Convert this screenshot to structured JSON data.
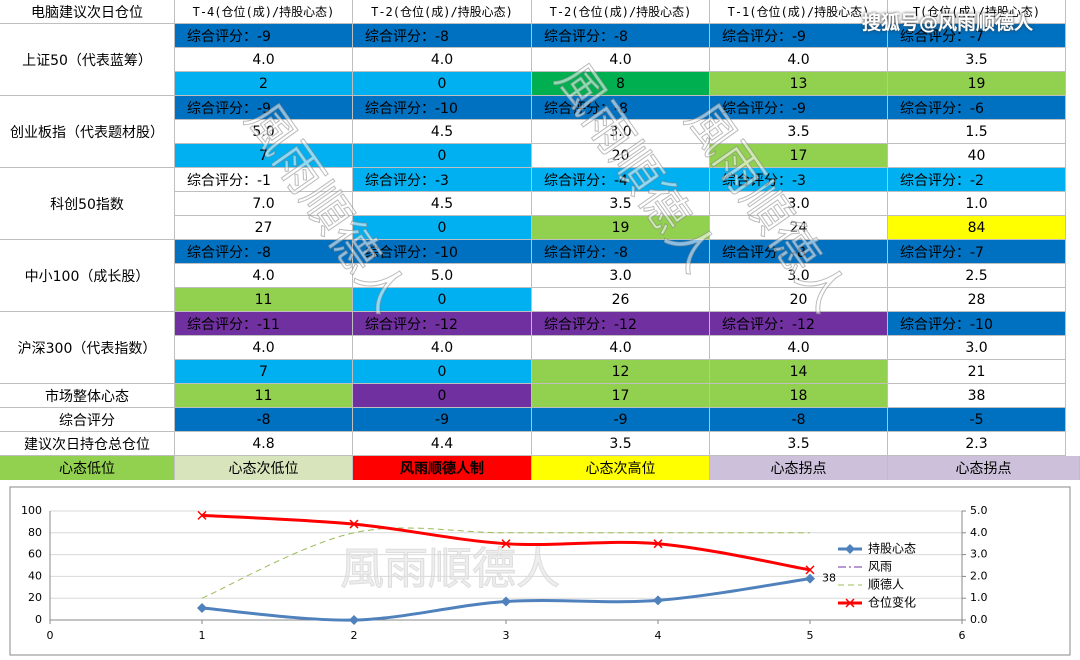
{
  "watermark_top": "搜狐号@风雨顺德人",
  "watermark": "風雨順德人",
  "table": {
    "header": [
      "电脑建议次日仓位",
      "T-4(仓位(成)/持股心态)",
      "T-2(仓位(成)/持股心态)",
      "T-2(仓位(成)/持股心态)",
      "T-1(仓位(成)/持股心态)",
      "T(仓位(成)/持股心态)"
    ],
    "groups": [
      {
        "name": "上证50（代表蓝筹）",
        "rows": [
          [
            {
              "text": "综合评分：-9",
              "fill": "#0070c0"
            },
            {
              "text": "综合评分：-8",
              "fill": "#0070c0"
            },
            {
              "text": "综合评分：-8",
              "fill": "#0070c0"
            },
            {
              "text": "综合评分：-9",
              "fill": "#0070c0"
            },
            {
              "text": "综合评分：-7",
              "fill": "#0070c0"
            }
          ],
          [
            {
              "text": "4.0",
              "fill": "#ffffff"
            },
            {
              "text": "4.0",
              "fill": "#ffffff"
            },
            {
              "text": "4.0",
              "fill": "#ffffff"
            },
            {
              "text": "4.0",
              "fill": "#ffffff"
            },
            {
              "text": "3.5",
              "fill": "#ffffff"
            }
          ],
          [
            {
              "text": "2",
              "fill": "#00b0f0"
            },
            {
              "text": "0",
              "fill": "#00b0f0"
            },
            {
              "text": "8",
              "fill": "#00b050"
            },
            {
              "text": "13",
              "fill": "#92d050"
            },
            {
              "text": "19",
              "fill": "#92d050"
            }
          ]
        ]
      },
      {
        "name": "创业板指（代表题材股）",
        "rows": [
          [
            {
              "text": "综合评分：-9",
              "fill": "#0070c0"
            },
            {
              "text": "综合评分：-10",
              "fill": "#0070c0"
            },
            {
              "text": "综合评分：-8",
              "fill": "#0070c0"
            },
            {
              "text": "综合评分：-9",
              "fill": "#0070c0"
            },
            {
              "text": "综合评分：-6",
              "fill": "#0070c0"
            }
          ],
          [
            {
              "text": "5.0",
              "fill": "#ffffff"
            },
            {
              "text": "4.5",
              "fill": "#ffffff"
            },
            {
              "text": "3.0",
              "fill": "#ffffff"
            },
            {
              "text": "3.5",
              "fill": "#ffffff"
            },
            {
              "text": "1.5",
              "fill": "#ffffff"
            }
          ],
          [
            {
              "text": "7",
              "fill": "#00b0f0"
            },
            {
              "text": "0",
              "fill": "#00b0f0"
            },
            {
              "text": "20",
              "fill": "#ffffff"
            },
            {
              "text": "17",
              "fill": "#92d050"
            },
            {
              "text": "40",
              "fill": "#ffffff"
            }
          ]
        ]
      },
      {
        "name": "科创50指数",
        "rows": [
          [
            {
              "text": "综合评分：-1",
              "fill": "#ffffff"
            },
            {
              "text": "综合评分：-3",
              "fill": "#00b0f0"
            },
            {
              "text": "综合评分：-4",
              "fill": "#00b0f0"
            },
            {
              "text": "综合评分：-3",
              "fill": "#00b0f0"
            },
            {
              "text": "综合评分：-2",
              "fill": "#00b0f0"
            }
          ],
          [
            {
              "text": "7.0",
              "fill": "#ffffff"
            },
            {
              "text": "4.5",
              "fill": "#ffffff"
            },
            {
              "text": "3.5",
              "fill": "#ffffff"
            },
            {
              "text": "3.0",
              "fill": "#ffffff"
            },
            {
              "text": "1.0",
              "fill": "#ffffff"
            }
          ],
          [
            {
              "text": "27",
              "fill": "#ffffff"
            },
            {
              "text": "0",
              "fill": "#00b0f0"
            },
            {
              "text": "19",
              "fill": "#92d050"
            },
            {
              "text": "24",
              "fill": "#ffffff"
            },
            {
              "text": "84",
              "fill": "#ffff00"
            }
          ]
        ]
      },
      {
        "name": "中小100（成长股）",
        "rows": [
          [
            {
              "text": "综合评分：-8",
              "fill": "#0070c0"
            },
            {
              "text": "综合评分：-10",
              "fill": "#0070c0"
            },
            {
              "text": "综合评分：-8",
              "fill": "#0070c0"
            },
            {
              "text": "综合评分：-8",
              "fill": "#0070c0"
            },
            {
              "text": "综合评分：-7",
              "fill": "#0070c0"
            }
          ],
          [
            {
              "text": "4.0",
              "fill": "#ffffff"
            },
            {
              "text": "5.0",
              "fill": "#ffffff"
            },
            {
              "text": "3.0",
              "fill": "#ffffff"
            },
            {
              "text": "3.0",
              "fill": "#ffffff"
            },
            {
              "text": "2.5",
              "fill": "#ffffff"
            }
          ],
          [
            {
              "text": "11",
              "fill": "#92d050"
            },
            {
              "text": "0",
              "fill": "#00b0f0"
            },
            {
              "text": "26",
              "fill": "#ffffff"
            },
            {
              "text": "20",
              "fill": "#ffffff"
            },
            {
              "text": "28",
              "fill": "#ffffff"
            }
          ]
        ]
      },
      {
        "name": "沪深300（代表指数）",
        "rows": [
          [
            {
              "text": "综合评分：-11",
              "fill": "#7030a0"
            },
            {
              "text": "综合评分：-12",
              "fill": "#7030a0"
            },
            {
              "text": "综合评分：-12",
              "fill": "#7030a0"
            },
            {
              "text": "综合评分：-12",
              "fill": "#7030a0"
            },
            {
              "text": "综合评分：-10",
              "fill": "#0070c0"
            }
          ],
          [
            {
              "text": "4.0",
              "fill": "#ffffff"
            },
            {
              "text": "4.0",
              "fill": "#ffffff"
            },
            {
              "text": "4.0",
              "fill": "#ffffff"
            },
            {
              "text": "4.0",
              "fill": "#ffffff"
            },
            {
              "text": "3.0",
              "fill": "#ffffff"
            }
          ],
          [
            {
              "text": "7",
              "fill": "#00b0f0"
            },
            {
              "text": "0",
              "fill": "#00b0f0"
            },
            {
              "text": "12",
              "fill": "#92d050"
            },
            {
              "text": "14",
              "fill": "#92d050"
            },
            {
              "text": "21",
              "fill": "#ffffff"
            }
          ]
        ]
      }
    ],
    "summary": [
      {
        "name": "市场整体心态",
        "cells": [
          {
            "text": "11",
            "fill": "#92d050"
          },
          {
            "text": "0",
            "fill": "#7030a0"
          },
          {
            "text": "17",
            "fill": "#92d050"
          },
          {
            "text": "18",
            "fill": "#92d050"
          },
          {
            "text": "38",
            "fill": "#ffffff"
          }
        ]
      },
      {
        "name": "综合评分",
        "cells": [
          {
            "text": "-8",
            "fill": "#0070c0"
          },
          {
            "text": "-9",
            "fill": "#0070c0"
          },
          {
            "text": "-9",
            "fill": "#0070c0"
          },
          {
            "text": "-8",
            "fill": "#0070c0"
          },
          {
            "text": "-5",
            "fill": "#0070c0"
          }
        ]
      },
      {
        "name": "建议次日持仓总仓位",
        "cells": [
          {
            "text": "4.8",
            "fill": "#ffffff"
          },
          {
            "text": "4.4",
            "fill": "#ffffff"
          },
          {
            "text": "3.5",
            "fill": "#ffffff"
          },
          {
            "text": "3.5",
            "fill": "#ffffff"
          },
          {
            "text": "2.3",
            "fill": "#ffffff"
          }
        ]
      }
    ],
    "legend": [
      {
        "text": "心态低位",
        "fill": "#92d050"
      },
      {
        "text": "心态次低位",
        "fill": "#d8e4bc"
      },
      {
        "text": "风雨顺德人制",
        "fill": "#ff0000"
      },
      {
        "text": "心态次高位",
        "fill": "#ffff00"
      },
      {
        "text": "心态拐点",
        "fill": "#ccc0da"
      },
      {
        "text": "心态拐点",
        "fill": "#ccc0da"
      }
    ]
  },
  "chart_data": {
    "type": "line",
    "x": [
      1,
      2,
      3,
      4,
      5
    ],
    "xlim": [
      0,
      6
    ],
    "xticks": [
      0,
      1,
      2,
      3,
      4,
      5,
      6
    ],
    "ylim": [
      0,
      100
    ],
    "yticks": [
      0,
      20,
      40,
      60,
      80,
      100
    ],
    "y2lim": [
      0,
      5
    ],
    "y2ticks": [
      {
        "value": 0,
        "label": "0.0"
      },
      {
        "value": 1,
        "label": "1.0"
      },
      {
        "value": 2,
        "label": "2.0"
      },
      {
        "value": 3,
        "label": "3.0"
      },
      {
        "value": 4,
        "label": "4.0"
      },
      {
        "value": 5,
        "label": "5.0"
      }
    ],
    "legend": "right",
    "series": [
      {
        "name": "持股心态",
        "color": "#4f81bd",
        "marker": "diamond",
        "dash": "solid",
        "width": 3,
        "values": [
          11,
          0,
          17,
          18,
          38
        ],
        "value_labels": [
          null,
          null,
          null,
          null,
          "38"
        ]
      },
      {
        "name": "风雨",
        "color": "#7030a0",
        "marker": "none",
        "dash": "dashdot",
        "width": 1,
        "values": [
          null,
          null,
          null,
          null,
          null
        ]
      },
      {
        "name": "顺德人",
        "color": "#9bbb59",
        "marker": "none",
        "dash": "dash",
        "width": 1,
        "axis": "y2",
        "values": [
          1.0,
          4.0,
          4.0,
          4.0,
          4.0
        ]
      },
      {
        "name": "仓位变化",
        "color": "#ff0000",
        "marker": "x",
        "dash": "solid",
        "width": 3,
        "axis": "y2",
        "values": [
          4.8,
          4.4,
          3.5,
          3.5,
          2.3
        ]
      }
    ]
  }
}
